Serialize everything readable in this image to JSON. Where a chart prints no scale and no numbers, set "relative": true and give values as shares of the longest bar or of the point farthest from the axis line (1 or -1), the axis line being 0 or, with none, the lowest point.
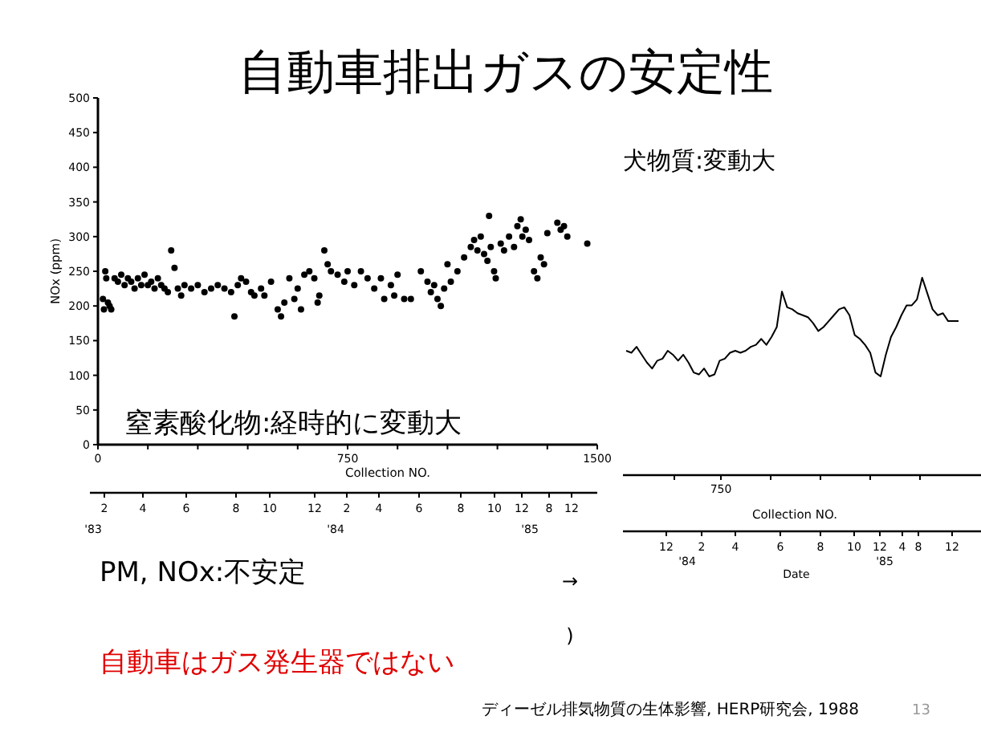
{
  "chart_data": [
    {
      "type": "scatter",
      "title": "自動車排出ガスの安定性",
      "xlabel": "Collection NO.",
      "ylabel": "NOx (ppm)",
      "x": [
        15,
        18,
        22,
        25,
        30,
        35,
        40,
        50,
        60,
        70,
        80,
        90,
        100,
        110,
        120,
        130,
        140,
        150,
        160,
        170,
        180,
        190,
        200,
        210,
        220,
        230,
        240,
        250,
        260,
        280,
        300,
        320,
        340,
        360,
        380,
        400,
        410,
        420,
        430,
        445,
        460,
        470,
        490,
        500,
        520,
        540,
        550,
        560,
        575,
        590,
        600,
        610,
        620,
        635,
        650,
        660,
        665,
        680,
        690,
        700,
        720,
        740,
        750,
        770,
        790,
        810,
        830,
        850,
        860,
        880,
        890,
        900,
        920,
        940,
        970,
        990,
        1000,
        1010,
        1020,
        1030,
        1040,
        1050,
        1060,
        1080,
        1100,
        1120,
        1130,
        1140,
        1150,
        1160,
        1170,
        1175,
        1180,
        1190,
        1195,
        1210,
        1220,
        1235,
        1250,
        1260,
        1270,
        1275,
        1285,
        1295,
        1310,
        1320,
        1330,
        1340,
        1350,
        1380,
        1390,
        1400,
        1410,
        1470
      ],
      "series": [
        {
          "color": "#000000",
          "values": [
            210,
            195,
            250,
            240,
            205,
            200,
            195,
            240,
            235,
            245,
            230,
            240,
            235,
            225,
            240,
            230,
            245,
            230,
            235,
            225,
            240,
            230,
            225,
            220,
            280,
            255,
            225,
            215,
            230,
            225,
            230,
            220,
            225,
            230,
            225,
            220,
            185,
            230,
            240,
            235,
            220,
            215,
            225,
            215,
            235,
            195,
            185,
            205,
            240,
            210,
            225,
            195,
            245,
            250,
            240,
            205,
            215,
            280,
            260,
            250,
            245,
            235,
            250,
            230,
            250,
            240,
            225,
            240,
            210,
            230,
            215,
            245,
            210,
            210,
            250,
            235,
            220,
            230,
            210,
            200,
            225,
            260,
            235,
            250,
            270,
            285,
            295,
            280,
            300,
            275,
            265,
            330,
            285,
            250,
            240,
            290,
            280,
            300,
            285,
            315,
            325,
            300,
            310,
            295,
            250,
            240,
            270,
            260,
            305,
            320,
            310,
            315,
            300,
            290
          ]
        }
      ],
      "xlim": [
        0,
        1500
      ],
      "xticks": [
        0,
        {
          "value": 150,
          "label": null
        },
        {
          "value": 300,
          "label": null
        },
        {
          "value": 450,
          "label": null
        },
        {
          "value": 600,
          "label": null
        },
        750,
        {
          "value": 900,
          "label": null
        },
        {
          "value": 1050,
          "label": null
        },
        {
          "value": 1200,
          "label": null
        },
        {
          "value": 1350,
          "label": null
        },
        1500
      ],
      "ylim": [
        0,
        500
      ],
      "yticks": [
        0,
        50,
        100,
        150,
        200,
        250,
        300,
        350,
        400,
        450,
        500
      ],
      "marker": "circle",
      "annotations": [
        "窒素酸化物:経時的に変動大",
        "犬物質:変動大",
        "PM, NOx:不安定",
        "→",
        ")",
        "自動車はガス発生器ではない",
        "ディーゼル排気物質の生体影響, HERP研究会, 1988",
        "13",
        "2",
        "4",
        "6",
        "8",
        "10",
        "12",
        "2",
        "4",
        "6",
        "8",
        "10",
        "12",
        "8",
        "12",
        "'83",
        "'84",
        "'85"
      ]
    },
    {
      "type": "line",
      "relative": true,
      "xlabel": "Collection NO.",
      "categories": [
        null,
        null,
        null,
        null,
        null,
        null,
        null,
        null,
        null,
        null,
        null,
        null,
        null,
        null,
        null,
        null,
        null,
        null,
        null,
        null,
        null,
        null,
        null,
        null,
        null,
        null,
        null,
        null,
        null,
        null,
        null,
        null,
        null,
        null,
        null,
        null,
        null,
        null,
        null,
        null,
        null,
        null,
        null,
        null,
        null,
        null,
        null,
        null,
        null,
        null,
        null,
        null,
        null,
        null,
        null,
        null,
        null,
        null,
        null,
        null,
        null,
        null,
        null,
        null,
        null
      ],
      "series": [
        {
          "color": "#000000",
          "values": [
            0.63,
            0.62,
            0.65,
            0.61,
            0.57,
            0.54,
            0.58,
            0.59,
            0.63,
            0.61,
            0.58,
            0.61,
            0.57,
            0.52,
            0.51,
            0.54,
            0.5,
            0.51,
            0.58,
            0.59,
            0.62,
            0.63,
            0.62,
            0.63,
            0.65,
            0.66,
            0.69,
            0.66,
            0.7,
            0.75,
            0.93,
            0.85,
            0.84,
            0.82,
            0.81,
            0.8,
            0.77,
            0.73,
            0.75,
            0.78,
            0.81,
            0.84,
            0.85,
            0.81,
            0.71,
            0.69,
            0.66,
            0.62,
            0.52,
            0.5,
            0.61,
            0.7,
            0.75,
            0.81,
            0.86,
            0.86,
            0.89,
            1,
            0.92,
            0.84,
            0.81,
            0.82,
            0.78,
            0.78,
            0.78
          ]
        }
      ],
      "annotations": [
        "750",
        "12",
        "2",
        "4",
        "6",
        "8",
        "10",
        "12",
        "4",
        "8",
        "12",
        "'84",
        "'85",
        "Date"
      ]
    }
  ]
}
